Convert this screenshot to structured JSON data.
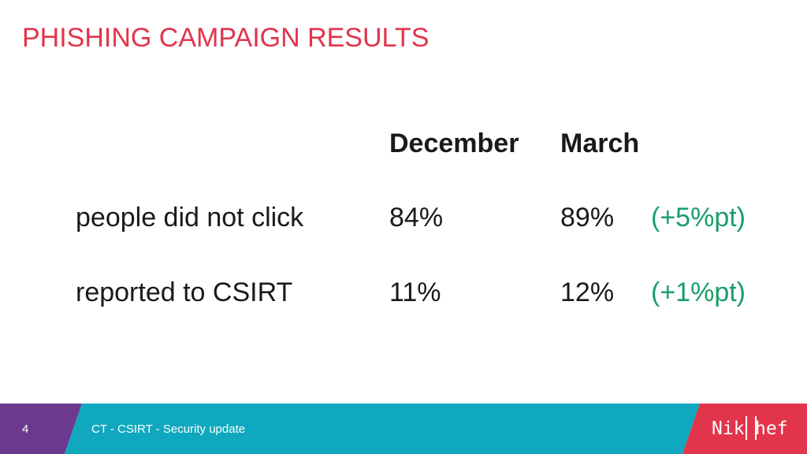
{
  "slide": {
    "title": "PHISHING CAMPAIGN RESULTS"
  },
  "table": {
    "headers": [
      "December",
      "March"
    ],
    "rows": [
      {
        "label": "people did not click",
        "december": "84%",
        "march": "89%",
        "delta": "(+5%pt)"
      },
      {
        "label": "reported to CSIRT",
        "december": "11%",
        "march": "12%",
        "delta": "(+1%pt)"
      }
    ]
  },
  "footer": {
    "page_number": "4",
    "text": "CT - CSIRT - Security update",
    "logo_left": "Nik",
    "logo_right": "hef"
  },
  "colors": {
    "title": "#e2344b",
    "delta": "#1a9e6a",
    "footer_purple": "#6b3a8f",
    "footer_teal": "#0fa8be",
    "footer_red": "#e2344b"
  }
}
